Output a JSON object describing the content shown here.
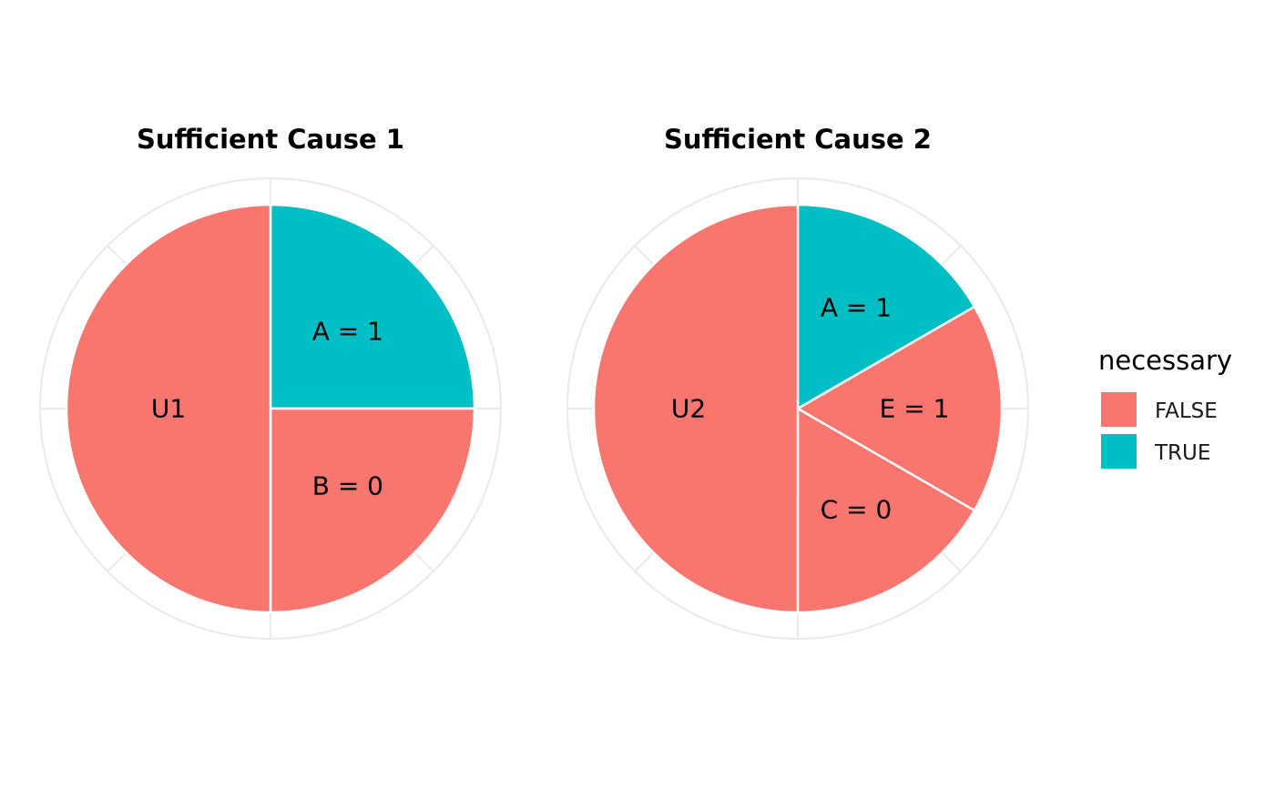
{
  "chart_data": [
    {
      "type": "pie",
      "title": "Sufficient Cause 1",
      "slices": [
        {
          "label": "A = 1",
          "value": 0.25,
          "necessary": "TRUE"
        },
        {
          "label": "B = 0",
          "value": 0.25,
          "necessary": "FALSE"
        },
        {
          "label": "U1",
          "value": 0.5,
          "necessary": "FALSE"
        }
      ],
      "fill_by": "necessary",
      "start": "top",
      "direction": "clockwise",
      "polar_grid": true
    },
    {
      "type": "pie",
      "title": "Sufficient Cause 2",
      "slices": [
        {
          "label": "A = 1",
          "value": 0.1667,
          "necessary": "TRUE"
        },
        {
          "label": "E = 1",
          "value": 0.1667,
          "necessary": "FALSE"
        },
        {
          "label": "C = 0",
          "value": 0.1667,
          "necessary": "FALSE"
        },
        {
          "label": "U2",
          "value": 0.5,
          "necessary": "FALSE"
        }
      ],
      "fill_by": "necessary",
      "start": "top",
      "direction": "clockwise",
      "polar_grid": true
    }
  ],
  "legend": {
    "title": "necessary",
    "position": "right",
    "entries": [
      {
        "label": "FALSE",
        "color": "#F8766D"
      },
      {
        "label": "TRUE",
        "color": "#00BFC4"
      }
    ]
  },
  "colors": {
    "FALSE": "#F8766D",
    "TRUE": "#00BFC4",
    "grid": "#EBEBEB",
    "slice_border": "#FFFFFF"
  }
}
